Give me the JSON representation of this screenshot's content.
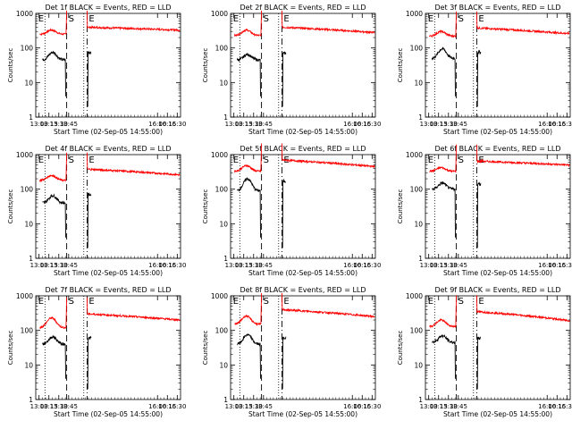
{
  "chart_data": {
    "type": "line",
    "y_scale": "log",
    "ylim": [
      1,
      1000
    ],
    "xlim": [
      "12:55",
      "16:35"
    ],
    "ylabel": "Counts/sec",
    "xlabel": "Start Time (02-Sep-05 14:55:00)",
    "y_tick_labels": [
      "1",
      "10",
      "100",
      "1000"
    ],
    "x_tick_labels": [
      "13:00",
      "13:15",
      "13:30",
      "13:45",
      "16:00",
      "16:15",
      "16:30"
    ],
    "colors": {
      "events": "#000000",
      "lld": "#ff0000"
    },
    "legend": "BLACK = Events, RED = LLD",
    "markers": [
      {
        "label": "E",
        "time": "12:56",
        "style": "none"
      },
      {
        "label": "S",
        "time": "13:42",
        "style": "dashed"
      },
      {
        "label": "E",
        "time": "14:13",
        "style": "dashdot"
      }
    ],
    "dotted_lines": [
      "13:09",
      "14:08"
    ],
    "panels": [
      {
        "title": "Det 1f BLACK = Events, RED = LLD",
        "lld": {
          "pre": 250,
          "peak": 330,
          "post": 400,
          "post_end": 330
        },
        "events": {
          "pre": 45,
          "peak": 75,
          "post": 75
        }
      },
      {
        "title": "Det 2f BLACK = Events, RED = LLD",
        "lld": {
          "pre": 230,
          "peak": 330,
          "post": 400,
          "post_end": 280
        },
        "events": {
          "pre": 45,
          "peak": 65,
          "post": 70
        }
      },
      {
        "title": "Det 3f BLACK = Events, RED = LLD",
        "lld": {
          "pre": 220,
          "peak": 300,
          "post": 380,
          "post_end": 260
        },
        "events": {
          "pre": 50,
          "peak": 95,
          "post": 75
        }
      },
      {
        "title": "Det 4f BLACK = Events, RED = LLD",
        "lld": {
          "pre": 180,
          "peak": 250,
          "post": 380,
          "post_end": 260
        },
        "events": {
          "pre": 40,
          "peak": 65,
          "post": 70
        }
      },
      {
        "title": "Det 5f BLACK = Events, RED = LLD",
        "lld": {
          "pre": 330,
          "peak": 480,
          "post": 700,
          "post_end": 450
        },
        "events": {
          "pre": 90,
          "peak": 200,
          "post": 170
        }
      },
      {
        "title": "Det 6f BLACK = Events, RED = LLD",
        "lld": {
          "pre": 330,
          "peak": 420,
          "post": 650,
          "post_end": 500
        },
        "events": {
          "pre": 100,
          "peak": 150,
          "post": 140
        }
      },
      {
        "title": "Det 7f BLACK = Events, RED = LLD",
        "lld": {
          "pre": 120,
          "peak": 230,
          "post": 300,
          "post_end": 200
        },
        "events": {
          "pre": 40,
          "peak": 65,
          "post": 60
        }
      },
      {
        "title": "Det 8f BLACK = Events, RED = LLD",
        "lld": {
          "pre": 150,
          "peak": 260,
          "post": 400,
          "post_end": 250
        },
        "events": {
          "pre": 40,
          "peak": 75,
          "post": 60
        }
      },
      {
        "title": "Det 9f BLACK = Events, RED = LLD",
        "lld": {
          "pre": 130,
          "peak": 200,
          "post": 350,
          "post_end": 190
        },
        "events": {
          "pre": 45,
          "peak": 70,
          "post": 60
        }
      }
    ]
  }
}
